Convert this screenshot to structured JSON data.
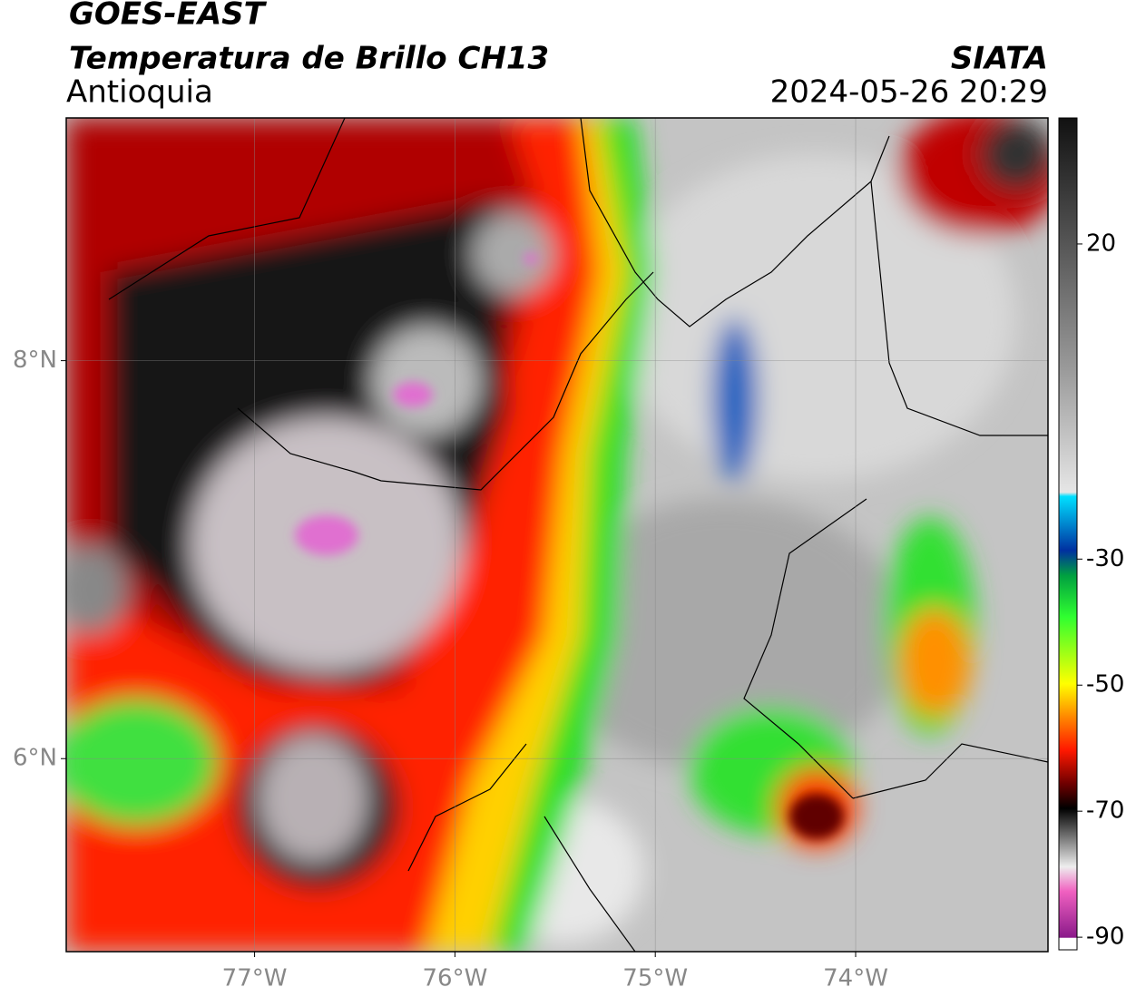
{
  "header": {
    "satellite": "GOES-EAST",
    "product": "Temperatura de Brillo CH13",
    "region": "Antioquia",
    "source": "SIATA",
    "datetime": "2024-05-26 20:29"
  },
  "map": {
    "xlim": [
      -77.94,
      -73.04
    ],
    "ylim": [
      5.03,
      9.22
    ],
    "xticks": [
      {
        "value": -77,
        "label": "77°W"
      },
      {
        "value": -76,
        "label": "76°W"
      },
      {
        "value": -75,
        "label": "75°W"
      },
      {
        "value": -74,
        "label": "74°W"
      }
    ],
    "yticks": [
      {
        "value": 8,
        "label": "8°N"
      },
      {
        "value": 6,
        "label": "6°N"
      }
    ],
    "grid": true
  },
  "colorbar": {
    "lim": [
      -92,
      40
    ],
    "ticks": [
      20,
      -30,
      -50,
      -70,
      -90
    ]
  }
}
